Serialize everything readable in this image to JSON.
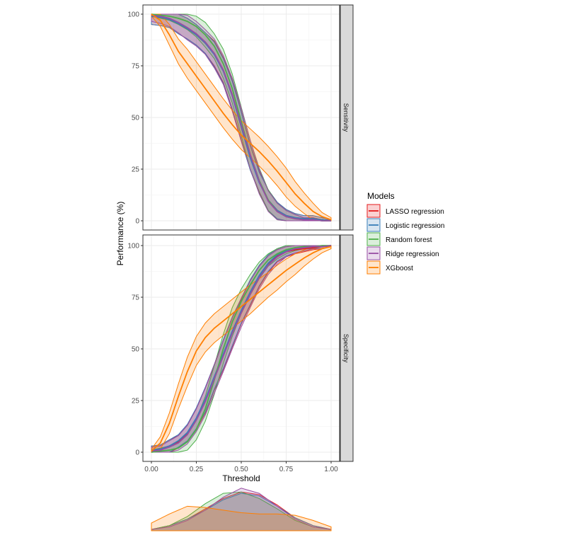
{
  "chart_data": [
    {
      "type": "line",
      "title": "",
      "xlabel": "Threshold",
      "ylabel": "Performance (%)",
      "xlim": [
        0,
        1
      ],
      "ylim": [
        0,
        100
      ],
      "x_ticks": [
        0,
        0.25,
        0.5,
        0.75,
        1.0
      ],
      "x_tick_labels": [
        "0.00",
        "0.25",
        "0.50",
        "0.75",
        "1.00"
      ],
      "y_ticks": [
        0,
        25,
        50,
        75,
        100
      ],
      "y_tick_labels": [
        "0",
        "25",
        "50",
        "75",
        "100"
      ],
      "grid": true,
      "facets": [
        "Sensitivity",
        "Specificity"
      ],
      "legend_title": "Models",
      "legend_position": "right",
      "x": [
        0.0,
        0.05,
        0.1,
        0.15,
        0.2,
        0.25,
        0.3,
        0.35,
        0.4,
        0.45,
        0.5,
        0.55,
        0.6,
        0.65,
        0.7,
        0.75,
        0.8,
        0.85,
        0.9,
        0.95,
        1.0
      ],
      "series": [
        {
          "name": "LASSO regression",
          "color": "#e41a1c",
          "sensitivity": [
            99,
            98.5,
            97.5,
            95.5,
            93,
            90,
            86,
            81,
            73,
            61,
            46,
            31,
            19,
            10,
            5,
            2.5,
            1.5,
            1,
            1,
            0.5,
            0
          ],
          "sensitivity_band": [
            4,
            4,
            4,
            5,
            5,
            5,
            5,
            6,
            6,
            7,
            7,
            6,
            5,
            5,
            4,
            3,
            2,
            1.5,
            1.5,
            1,
            0.5
          ],
          "specificity": [
            1,
            1.5,
            3,
            5,
            9,
            16,
            25,
            36,
            47,
            58,
            68,
            77,
            85,
            91,
            95,
            97,
            98,
            98.5,
            99,
            99.5,
            100
          ],
          "specificity_band": [
            2,
            2,
            3,
            3,
            4,
            5,
            6,
            6,
            7,
            7,
            6,
            6,
            5,
            4,
            3,
            2.5,
            2,
            1.5,
            1,
            1,
            0.5
          ]
        },
        {
          "name": "Logistic regression",
          "color": "#377eb8",
          "sensitivity": [
            99,
            98.5,
            97.5,
            95.5,
            93,
            90,
            86,
            80.5,
            72.5,
            60.5,
            45.5,
            30.5,
            18.5,
            10,
            5,
            2.5,
            1.5,
            1,
            1,
            0.5,
            0
          ],
          "sensitivity_band": [
            4,
            4,
            4,
            5,
            5,
            5,
            5,
            6,
            6,
            7,
            7,
            6,
            5,
            5,
            4,
            3,
            2,
            1.5,
            1.5,
            1,
            0.5
          ],
          "specificity": [
            1,
            1.5,
            3,
            5.5,
            9.5,
            16.5,
            25.5,
            36.5,
            47.5,
            58.5,
            68.5,
            77.5,
            85.5,
            91.5,
            95.5,
            97.5,
            98.5,
            99,
            99.5,
            99.5,
            100
          ],
          "specificity_band": [
            2,
            2,
            3,
            3,
            4,
            5,
            6,
            6,
            7,
            7,
            6,
            6,
            5,
            4,
            3,
            2.5,
            2,
            1.5,
            1,
            1,
            0.5
          ]
        },
        {
          "name": "Random forest",
          "color": "#4daf4a",
          "sensitivity": [
            100,
            99.5,
            99,
            98,
            96.5,
            94,
            90,
            84.5,
            76,
            64,
            48,
            32,
            19.5,
            10,
            4.5,
            2,
            1,
            0.5,
            0.5,
            0,
            0
          ],
          "sensitivity_band": [
            1,
            1.5,
            2,
            3,
            4,
            5,
            6,
            6,
            7,
            7,
            7,
            7,
            6,
            5,
            4,
            3,
            2,
            1,
            1,
            0.5,
            0.5
          ],
          "specificity": [
            0,
            0.5,
            1,
            2,
            5,
            11,
            21,
            35,
            50,
            63,
            73,
            81,
            88,
            93,
            96,
            98,
            99,
            99.5,
            99.5,
            100,
            100
          ],
          "specificity_band": [
            1,
            1.5,
            2,
            3,
            4,
            5,
            6,
            7,
            7,
            7,
            6,
            5,
            4,
            3,
            2.5,
            2,
            1.5,
            1,
            1,
            0.5,
            0.5
          ]
        },
        {
          "name": "Ridge regression",
          "color": "#984ea3",
          "sensitivity": [
            99.5,
            99,
            98,
            96,
            93.5,
            90.5,
            86.5,
            81,
            73,
            61,
            46.5,
            32,
            19,
            9.5,
            4.5,
            2,
            1,
            0.5,
            0.5,
            0,
            0
          ],
          "sensitivity_band": [
            3,
            3.5,
            4,
            5,
            6,
            6,
            6,
            7,
            7,
            8,
            8,
            7,
            6,
            5,
            4,
            3,
            2,
            1,
            1,
            0.5,
            0.5
          ],
          "specificity": [
            0.5,
            1,
            2.5,
            4.5,
            8.5,
            15.5,
            24.5,
            35.5,
            46.5,
            57.5,
            67.5,
            76.5,
            84.5,
            90.5,
            94.5,
            97,
            98.5,
            99,
            99.5,
            99.5,
            100
          ],
          "specificity_band": [
            2,
            2,
            3,
            3.5,
            4.5,
            5.5,
            6.5,
            7,
            7.5,
            7.5,
            7,
            6.5,
            5.5,
            4.5,
            3.5,
            2.5,
            2,
            1.5,
            1,
            1,
            0.5
          ]
        },
        {
          "name": "XGboost",
          "color": "#ff7f00",
          "sensitivity": [
            100,
            97,
            90,
            82,
            76,
            70,
            64,
            58,
            52,
            46.5,
            41.5,
            37.5,
            33.5,
            29,
            24,
            18.5,
            13,
            8.5,
            4.5,
            2,
            0.5
          ],
          "sensitivity_band": [
            1,
            3,
            5,
            6,
            7,
            7,
            7,
            7,
            7,
            7,
            7,
            7,
            7,
            7,
            7,
            7,
            6,
            5,
            4,
            2,
            1
          ],
          "specificity": [
            0.5,
            4.5,
            14,
            27,
            39,
            49,
            55.5,
            60,
            63.5,
            67,
            70.5,
            74,
            77.5,
            81,
            84.5,
            88,
            91,
            94,
            96.5,
            98.5,
            99.5
          ],
          "specificity_band": [
            1,
            3,
            5,
            6,
            7,
            7,
            7,
            7,
            7,
            7,
            7,
            7,
            6.5,
            6,
            6,
            5.5,
            5,
            4,
            3,
            2,
            1
          ]
        }
      ]
    },
    {
      "type": "area",
      "title": "",
      "description_series": "density of predicted probabilities per model",
      "x": [
        0.0,
        0.1,
        0.2,
        0.3,
        0.4,
        0.5,
        0.6,
        0.7,
        0.8,
        0.9,
        1.0
      ],
      "series": [
        {
          "name": "LASSO regression",
          "color": "#e41a1c",
          "values": [
            0.1,
            0.4,
            0.9,
            1.7,
            2.5,
            3.0,
            2.8,
            2.0,
            1.0,
            0.4,
            0.1
          ]
        },
        {
          "name": "Logistic regression",
          "color": "#377eb8",
          "values": [
            0.1,
            0.4,
            0.9,
            1.6,
            2.4,
            2.9,
            2.7,
            1.9,
            1.0,
            0.4,
            0.1
          ]
        },
        {
          "name": "Random forest",
          "color": "#4daf4a",
          "values": [
            0.1,
            0.4,
            1.1,
            2.1,
            2.9,
            3.0,
            2.5,
            1.7,
            0.8,
            0.3,
            0.1
          ]
        },
        {
          "name": "Ridge regression",
          "color": "#984ea3",
          "values": [
            0.1,
            0.3,
            0.8,
            1.6,
            2.6,
            3.3,
            2.9,
            1.9,
            0.9,
            0.3,
            0.1
          ]
        },
        {
          "name": "XGboost",
          "color": "#ff7f00",
          "values": [
            0.6,
            1.3,
            1.9,
            1.8,
            1.6,
            1.4,
            1.3,
            1.3,
            1.2,
            0.8,
            0.3
          ]
        }
      ]
    }
  ]
}
